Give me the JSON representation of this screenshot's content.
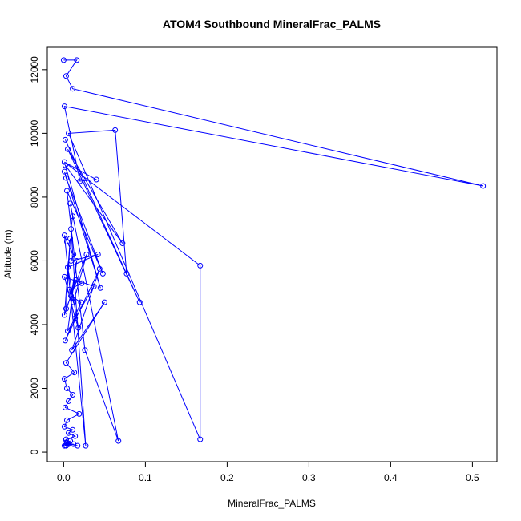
{
  "chart_data": {
    "type": "line",
    "title": "ATOM4 Southbound MineralFrac_PALMS",
    "xlabel": "MineralFrac_PALMS",
    "ylabel": "Altitude (m)",
    "xlim": [
      -0.02,
      0.53
    ],
    "ylim": [
      -300,
      12700
    ],
    "xticks": [
      0,
      0.1,
      0.2,
      0.3,
      0.4,
      0.5
    ],
    "xtick_labels": [
      "0.0",
      "0.1",
      "0.2",
      "0.3",
      "0.4",
      "0.5"
    ],
    "yticks": [
      0,
      2000,
      4000,
      6000,
      8000,
      10000,
      12000
    ],
    "ytick_labels": [
      "0",
      "2000",
      "4000",
      "6000",
      "8000",
      "10000",
      "12000"
    ],
    "grid": false,
    "series": [
      {
        "color": "#0000ff",
        "marker": "open-circle",
        "x": [
          0.0,
          0.016,
          0.003,
          0.011,
          0.513,
          0.001,
          0.02,
          0.04,
          0.001,
          0.167,
          0.167,
          0.006,
          0.063,
          0.077,
          0.002,
          0.093,
          0.005,
          0.072,
          0.002,
          0.045,
          0.001,
          0.003,
          0.048,
          0.004,
          0.026,
          0.067,
          0.008,
          0.011,
          0.009,
          0.027,
          0.001,
          0.004,
          0.012,
          0.009,
          0.042,
          0.005,
          0.018,
          0.014,
          0.001,
          0.022,
          0.007,
          0.012,
          0.028,
          0.003,
          0.008,
          0.001,
          0.015,
          0.037,
          0.005,
          0.016,
          0.009,
          0.021,
          0.002,
          0.044,
          0.01,
          0.05,
          0.003,
          0.013,
          0.001,
          0.004,
          0.011,
          0.006,
          0.002,
          0.019,
          0.004,
          0.001,
          0.011,
          0.006,
          0.014,
          0.003,
          0.002,
          0.006,
          0.012,
          0.001,
          0.017,
          0.004,
          0.008,
          0.003
        ],
        "y": [
          12300,
          12300,
          11800,
          11400,
          8350,
          10850,
          8500,
          8550,
          9100,
          5850,
          400,
          10000,
          10100,
          5600,
          9800,
          4700,
          9500,
          6550,
          9000,
          5150,
          8800,
          8600,
          5600,
          8200,
          3200,
          350,
          7800,
          7400,
          7000,
          200,
          6800,
          6600,
          6200,
          6000,
          6200,
          5800,
          3900,
          4200,
          5500,
          5300,
          5100,
          4700,
          6200,
          4500,
          6700,
          4300,
          5400,
          5200,
          3800,
          6000,
          4900,
          4700,
          3500,
          5750,
          3200,
          4700,
          2800,
          2500,
          2300,
          2000,
          1800,
          1600,
          1400,
          1200,
          1000,
          800,
          700,
          600,
          500,
          400,
          300,
          250,
          250,
          200,
          200,
          300,
          350,
          200
        ]
      }
    ]
  }
}
